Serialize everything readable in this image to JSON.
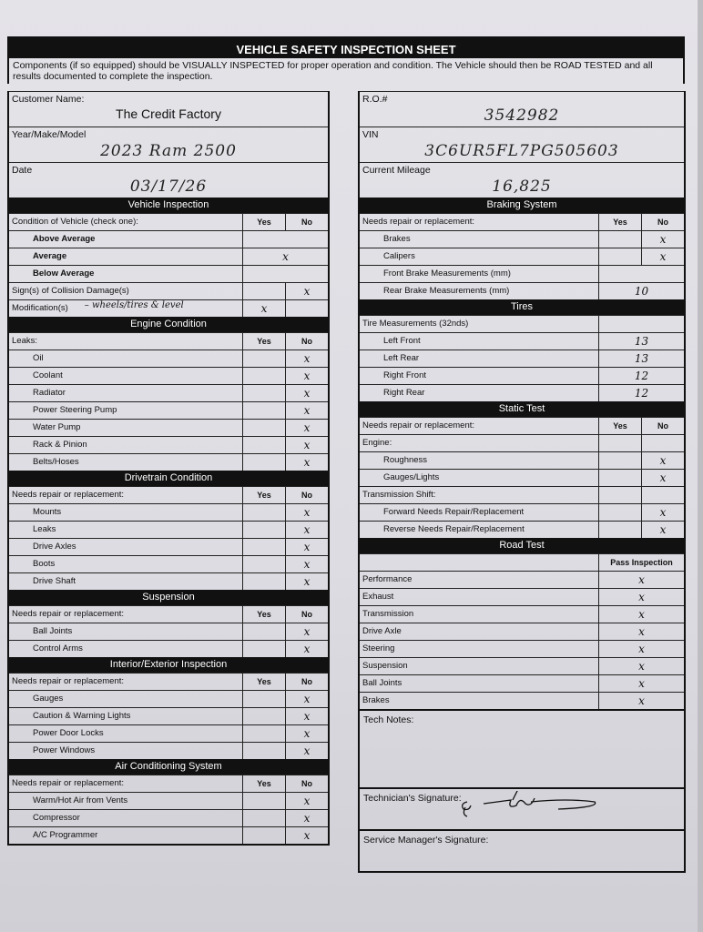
{
  "title": "VEHICLE SAFETY INSPECTION SHEET",
  "intro": "Components (if so equipped) should be VISUALLY INSPECTED for proper operation and condition. The Vehicle should then be ROAD TESTED and all results documented to complete the inspection.",
  "info_left": [
    {
      "label": "Customer Name:",
      "value": "The Credit Factory",
      "handwritten": false
    },
    {
      "label": "Year/Make/Model",
      "value": "2023 Ram 2500",
      "handwritten": true
    },
    {
      "label": "Date",
      "value": "03/17/26",
      "handwritten": true
    }
  ],
  "info_right": [
    {
      "label": "R.O.#",
      "value": "3542982",
      "handwritten": true
    },
    {
      "label": "VIN",
      "value": "3C6UR5FL7PG505603",
      "handwritten": true
    },
    {
      "label": "Current Mileage",
      "value": "16,825",
      "handwritten": true
    }
  ],
  "left_sections": [
    {
      "title": "Vehicle Inspection",
      "kind": "yesno",
      "header": {
        "label": "Condition of Vehicle (check one):",
        "yes": "Yes",
        "no": "No"
      },
      "rows": [
        {
          "label": "Above Average",
          "bold": true,
          "yes": "",
          "no": "",
          "merged": true
        },
        {
          "label": "Average",
          "bold": true,
          "yes": "",
          "no": "",
          "merged": true,
          "mark": "x"
        },
        {
          "label": "Below Average",
          "bold": true,
          "yes": "",
          "no": "",
          "merged": true
        },
        {
          "label": "Sign(s) of Collision Damage(s)",
          "flat": true,
          "yes": "",
          "no": "x"
        },
        {
          "label": "Modification(s)",
          "flat": true,
          "note": "– wheels/tires & level",
          "yes": "x",
          "no": ""
        }
      ]
    },
    {
      "title": "Engine Condition",
      "kind": "yesno",
      "header": {
        "label": "Leaks:",
        "yes": "Yes",
        "no": "No"
      },
      "rows": [
        {
          "label": "Oil",
          "yes": "",
          "no": "x"
        },
        {
          "label": "Coolant",
          "yes": "",
          "no": "x"
        },
        {
          "label": "Radiator",
          "yes": "",
          "no": "x"
        },
        {
          "label": "Power Steering Pump",
          "yes": "",
          "no": "x"
        },
        {
          "label": "Water Pump",
          "yes": "",
          "no": "x"
        },
        {
          "label": "Rack & Pinion",
          "yes": "",
          "no": "x"
        },
        {
          "label": "Belts/Hoses",
          "yes": "",
          "no": "x"
        }
      ]
    },
    {
      "title": "Drivetrain Condition",
      "kind": "yesno",
      "header": {
        "label": "Needs repair or replacement:",
        "yes": "Yes",
        "no": "No"
      },
      "rows": [
        {
          "label": "Mounts",
          "yes": "",
          "no": "x"
        },
        {
          "label": "Leaks",
          "yes": "",
          "no": "x"
        },
        {
          "label": "Drive Axles",
          "yes": "",
          "no": "x"
        },
        {
          "label": "Boots",
          "yes": "",
          "no": "x"
        },
        {
          "label": "Drive Shaft",
          "yes": "",
          "no": "x"
        }
      ]
    },
    {
      "title": "Suspension",
      "kind": "yesno",
      "header": {
        "label": "Needs repair or replacement:",
        "yes": "Yes",
        "no": "No"
      },
      "rows": [
        {
          "label": "Ball Joints",
          "yes": "",
          "no": "x"
        },
        {
          "label": "Control Arms",
          "yes": "",
          "no": "x"
        }
      ]
    },
    {
      "title": "Interior/Exterior Inspection",
      "kind": "yesno",
      "header": {
        "label": "Needs repair or replacement:",
        "yes": "Yes",
        "no": "No"
      },
      "rows": [
        {
          "label": "Gauges",
          "yes": "",
          "no": "x"
        },
        {
          "label": "Caution & Warning Lights",
          "yes": "",
          "no": "x"
        },
        {
          "label": "Power Door Locks",
          "yes": "",
          "no": "x"
        },
        {
          "label": "Power Windows",
          "yes": "",
          "no": "x"
        }
      ]
    },
    {
      "title": "Air Conditioning System",
      "kind": "yesno",
      "header": {
        "label": "Needs repair or replacement:",
        "yes": "Yes",
        "no": "No"
      },
      "rows": [
        {
          "label": "Warm/Hot Air from Vents",
          "yes": "",
          "no": "x"
        },
        {
          "label": "Compressor",
          "yes": "",
          "no": "x"
        },
        {
          "label": "A/C Programmer",
          "yes": "",
          "no": "x"
        }
      ]
    }
  ],
  "right_sections": [
    {
      "title": "Braking System",
      "kind": "yesno",
      "header": {
        "label": "Needs repair or replacement:",
        "yes": "Yes",
        "no": "No"
      },
      "rows": [
        {
          "label": "Brakes",
          "yes": "",
          "no": "x"
        },
        {
          "label": "Calipers",
          "yes": "",
          "no": "x"
        },
        {
          "label": "Front Brake Measurements (mm)",
          "merged": true,
          "mark": ""
        },
        {
          "label": "Rear Brake Measurements (mm)",
          "merged": true,
          "mark": "10"
        }
      ]
    },
    {
      "title": "Tires",
      "kind": "value",
      "header": {
        "label": "Tire Measurements (32nds)",
        "col": ""
      },
      "rows": [
        {
          "label": "Left Front",
          "value": "13"
        },
        {
          "label": "Left Rear",
          "value": "13"
        },
        {
          "label": "Right Front",
          "value": "12"
        },
        {
          "label": "Right Rear",
          "value": "12"
        }
      ]
    },
    {
      "title": "Static Test",
      "kind": "yesno",
      "header": {
        "label": "Needs repair or replacement:",
        "yes": "Yes",
        "no": "No"
      },
      "rows": [
        {
          "label": "Engine:",
          "flat": true,
          "yes": "",
          "no": ""
        },
        {
          "label": "Roughness",
          "yes": "",
          "no": "x"
        },
        {
          "label": "Gauges/Lights",
          "yes": "",
          "no": "x"
        },
        {
          "label": "Transmission Shift:",
          "flat": true,
          "yes": "",
          "no": ""
        },
        {
          "label": "Forward Needs Repair/Replacement",
          "yes": "",
          "no": "x"
        },
        {
          "label": "Reverse Needs Repair/Replacement",
          "yes": "",
          "no": "x"
        }
      ]
    },
    {
      "title": "Road Test",
      "kind": "value",
      "header": {
        "label": "",
        "col": "Pass Inspection"
      },
      "rows": [
        {
          "label": "Performance",
          "flat": true,
          "value": "x"
        },
        {
          "label": "Exhaust",
          "flat": true,
          "value": "x"
        },
        {
          "label": "Transmission",
          "flat": true,
          "value": "x"
        },
        {
          "label": "Drive Axle",
          "flat": true,
          "value": "x"
        },
        {
          "label": "Steering",
          "flat": true,
          "value": "x"
        },
        {
          "label": "Suspension",
          "flat": true,
          "value": "x"
        },
        {
          "label": "Ball Joints",
          "flat": true,
          "value": "x"
        },
        {
          "label": "Brakes",
          "flat": true,
          "value": "x"
        }
      ]
    }
  ],
  "tech_notes_label": "Tech Notes:",
  "tech_notes_value": "",
  "technician_signature_label": "Technician's Signature:",
  "service_manager_signature_label": "Service Manager's Signature:"
}
